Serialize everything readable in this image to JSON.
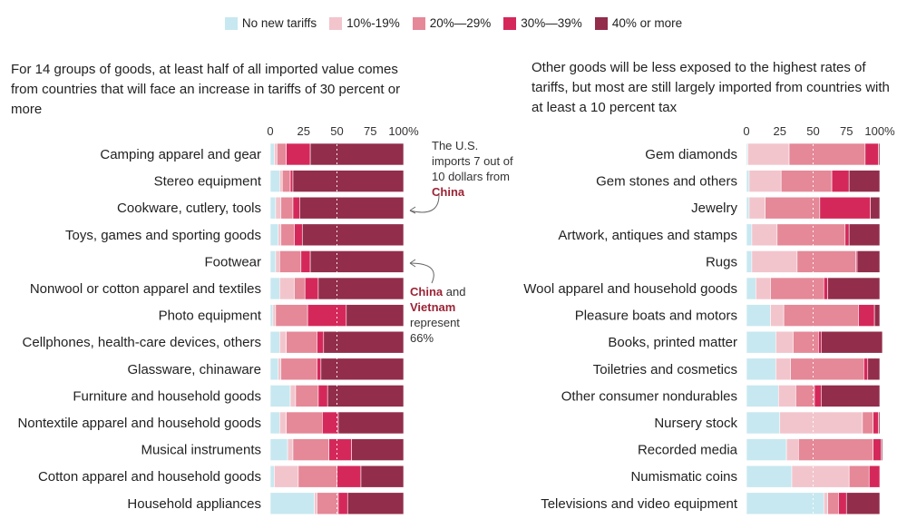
{
  "legend": {
    "items": [
      {
        "label": "No new tariffs",
        "color": "#c7e8f0"
      },
      {
        "label": "10%-19%",
        "color": "#f2c5cd"
      },
      {
        "label": "20%—29%",
        "color": "#e58898"
      },
      {
        "label": "30%—39%",
        "color": "#d5285a"
      },
      {
        "label": "40% or more",
        "color": "#922d4b"
      }
    ]
  },
  "left_subtitle": "For 14 groups of goods, at least half of all imported value comes from countries that will face an increase in tariffs of 30 percent or more",
  "right_subtitle": "Other goods will be less exposed to the highest rates of tariffs, but most are still largely imported from countries with at least a 10 percent tax",
  "annotations": {
    "china_note": {
      "pre": "The U.S. imports 7 out of 10 dollars from ",
      "emph": "China"
    },
    "china_vietnam_note": {
      "emph1": "China",
      "mid": " and ",
      "emph2": "Vietnam",
      "post": " represent 66%"
    }
  },
  "chart_data": [
    {
      "type": "bar",
      "orientation": "horizontal",
      "stacked": true,
      "title": "For 14 groups of goods, at least half of all imported value comes from countries that will face an increase in tariffs of 30 percent or more",
      "xlim": [
        0,
        100
      ],
      "x_ticks": [
        "0",
        "25",
        "50",
        "75",
        "100%"
      ],
      "reference_line": 50,
      "series_names": [
        "No new tariffs",
        "10%-19%",
        "20%—29%",
        "30%—39%",
        "40% or more"
      ],
      "categories": [
        "Camping apparel and gear",
        "Stereo equipment",
        "Cookware, cutlery, tools",
        "Toys, games and sporting goods",
        "Footwear",
        "Nonwool or cotton apparel and textiles",
        "Photo equipment",
        "Cellphones, health-care devices, others",
        "Glassware, chinaware",
        "Furniture and household goods",
        "Nontextile apparel and household goods",
        "Musical instruments",
        "Cotton apparel and household goods",
        "Household appliances"
      ],
      "series": [
        {
          "name": "No new tariffs",
          "values": [
            3,
            7,
            4,
            6,
            4,
            7,
            2,
            7,
            6,
            15,
            7,
            13,
            3,
            33
          ]
        },
        {
          "name": "10%-19%",
          "values": [
            2,
            2,
            4,
            2,
            3,
            11,
            2,
            5,
            2,
            4,
            5,
            4,
            18,
            2
          ]
        },
        {
          "name": "20%—29%",
          "values": [
            7,
            6,
            9,
            10,
            16,
            8,
            24,
            23,
            27,
            17,
            27,
            27,
            29,
            16
          ]
        },
        {
          "name": "30%—39%",
          "values": [
            18,
            2,
            5,
            6,
            7,
            10,
            29,
            5,
            3,
            7,
            12,
            17,
            18,
            7
          ]
        },
        {
          "name": "40% or more",
          "values": [
            70,
            83,
            78,
            76,
            70,
            64,
            43,
            60,
            62,
            57,
            49,
            39,
            32,
            42
          ]
        }
      ]
    },
    {
      "type": "bar",
      "orientation": "horizontal",
      "stacked": true,
      "title": "Other goods will be less exposed to the highest rates of tariffs, but most are still largely imported from countries with at least a 10 percent tax",
      "xlim": [
        0,
        100
      ],
      "x_ticks": [
        "0",
        "25",
        "50",
        "75",
        "100%"
      ],
      "reference_line": 50,
      "series_names": [
        "No new tariffs",
        "10%-19%",
        "20%—29%",
        "30%—39%",
        "40% or more"
      ],
      "categories": [
        "Gem diamonds",
        "Gem stones and others",
        "Jewelry",
        "Artwork, antiques and stamps",
        "Rugs",
        "Wool apparel and household goods",
        "Pleasure boats and motors",
        "Books, printed matter",
        "Toiletries and cosmetics",
        "Other consumer nondurables",
        "Nursery stock",
        "Recorded media",
        "Numismatic coins",
        "Televisions and video equipment"
      ],
      "series": [
        {
          "name": "No new tariffs",
          "values": [
            1,
            2,
            2,
            4,
            4,
            7,
            18,
            22,
            22,
            24,
            25,
            30,
            34,
            58
          ]
        },
        {
          "name": "10%-19%",
          "values": [
            31,
            24,
            12,
            19,
            34,
            11,
            10,
            13,
            11,
            13,
            62,
            9,
            43,
            3
          ]
        },
        {
          "name": "20%—29%",
          "values": [
            57,
            38,
            41,
            51,
            44,
            40,
            56,
            19,
            55,
            14,
            8,
            56,
            15,
            8
          ]
        },
        {
          "name": "30%—39%",
          "values": [
            10,
            13,
            38,
            3,
            1,
            3,
            12,
            2,
            3,
            5,
            4,
            6,
            8,
            6
          ]
        },
        {
          "name": "40% or more",
          "values": [
            1,
            23,
            7,
            23,
            17,
            39,
            4,
            46,
            9,
            44,
            1,
            1,
            0,
            25
          ]
        }
      ]
    }
  ]
}
